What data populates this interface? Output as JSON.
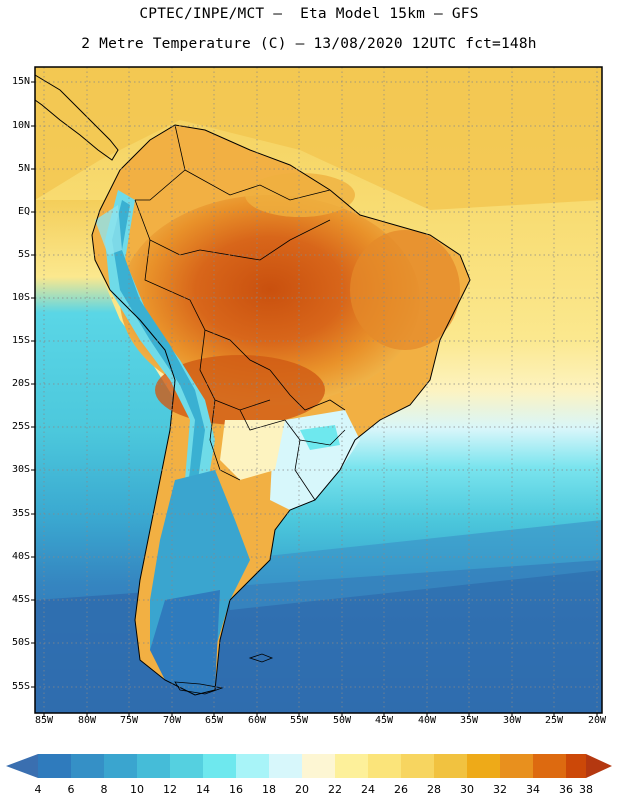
{
  "header": {
    "line1": "CPTEC/INPE/MCT –  Eta Model 15km – GFS",
    "line2": "2 Metre Temperature (C) – 13/08/2020 12UTC fct=148h"
  },
  "map": {
    "lat_labels": [
      "15N",
      "10N",
      "5N",
      "EQ",
      "5S",
      "10S",
      "15S",
      "20S",
      "25S",
      "30S",
      "35S",
      "40S",
      "45S",
      "50S",
      "55S"
    ],
    "lon_labels": [
      "85W",
      "80W",
      "75W",
      "70W",
      "65W",
      "60W",
      "55W",
      "50W",
      "45W",
      "40W",
      "35W",
      "30W",
      "25W",
      "20W"
    ]
  },
  "colorbar": {
    "labels": [
      "4",
      "6",
      "8",
      "10",
      "12",
      "14",
      "16",
      "18",
      "20",
      "22",
      "24",
      "26",
      "28",
      "30",
      "32",
      "34",
      "36",
      "38"
    ],
    "colors": [
      "#3a6fb0",
      "#2f7bbd",
      "#3590c6",
      "#3aa5cf",
      "#45bcd8",
      "#55d0e0",
      "#6ee8ee",
      "#a8f4f8",
      "#d7f7fb",
      "#fdf6d3",
      "#fdf09a",
      "#fbe47a",
      "#f7d560",
      "#f1c240",
      "#eeaa18",
      "#e8901e",
      "#dd6a10",
      "#cc4808",
      "#b43810",
      "#9c2a0a"
    ]
  }
}
